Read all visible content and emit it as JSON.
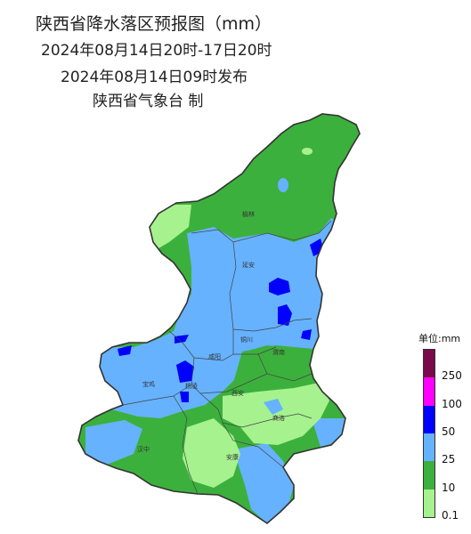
{
  "title": {
    "line1": "陕西省降水落区预报图（mm）",
    "line2": "2024年08月14日20时-17日20时",
    "line3": "2024年08月14日09时发布",
    "line4": "陕西省气象台 制"
  },
  "cities": [
    "榆林",
    "延安",
    "铜川",
    "渭南",
    "咸阳",
    "宝鸡",
    "杨凌",
    "西安",
    "商洛",
    "汉中",
    "安康"
  ],
  "legend": {
    "unit": "单位:mm",
    "levels": [
      {
        "label": "250",
        "color": "#7a0a4a"
      },
      {
        "label": "100",
        "color": "#ff00ff"
      },
      {
        "label": "50",
        "color": "#0000ff"
      },
      {
        "label": "25",
        "color": "#66b2ff"
      },
      {
        "label": "10",
        "color": "#3cb03c"
      },
      {
        "label": "0.1",
        "color": "#a6f28e"
      }
    ]
  },
  "colors": {
    "light_green": "#a6f28e",
    "green": "#3cb03c",
    "light_blue": "#66b2ff",
    "blue": "#0000ff",
    "border": "#333333"
  }
}
